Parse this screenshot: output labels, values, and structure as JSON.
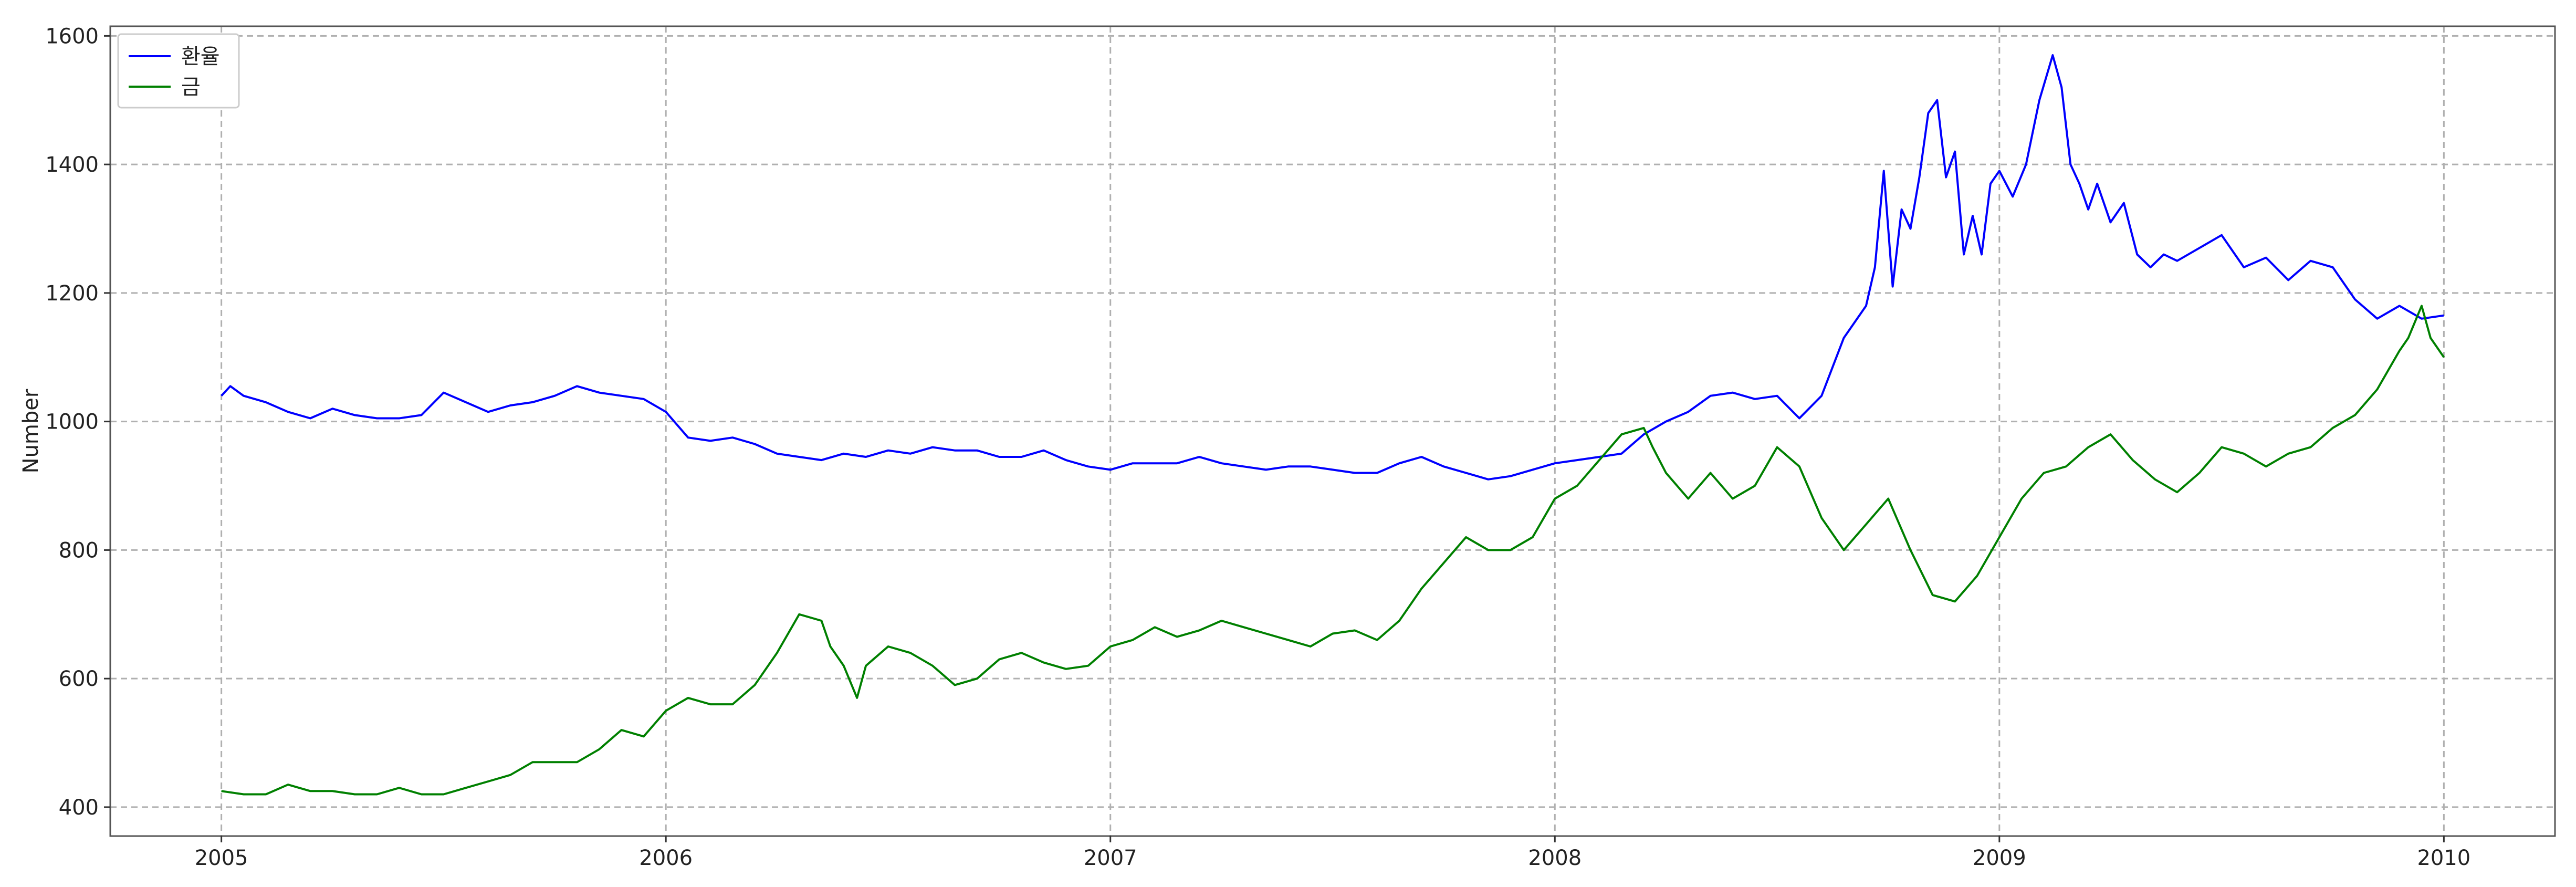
{
  "chart_data": {
    "type": "line",
    "title": "",
    "xlabel": "",
    "ylabel": "Number",
    "xlim": [
      2004.75,
      2010.25
    ],
    "ylim": [
      355,
      1615
    ],
    "x_ticks": [
      {
        "value": 2005,
        "label": "2005"
      },
      {
        "value": 2006,
        "label": "2006"
      },
      {
        "value": 2007,
        "label": "2007"
      },
      {
        "value": 2008,
        "label": "2008"
      },
      {
        "value": 2009,
        "label": "2009"
      },
      {
        "value": 2010,
        "label": "2010"
      }
    ],
    "y_ticks": [
      {
        "value": 400,
        "label": "400"
      },
      {
        "value": 600,
        "label": "600"
      },
      {
        "value": 800,
        "label": "800"
      },
      {
        "value": 1000,
        "label": "1000"
      },
      {
        "value": 1200,
        "label": "1200"
      },
      {
        "value": 1400,
        "label": "1400"
      },
      {
        "value": 1600,
        "label": "1600"
      }
    ],
    "grid": true,
    "legend_position": "top-left",
    "series": [
      {
        "name": "환율",
        "color": "#0000ff",
        "x": [
          2005.0,
          2005.02,
          2005.05,
          2005.1,
          2005.15,
          2005.2,
          2005.25,
          2005.3,
          2005.35,
          2005.4,
          2005.45,
          2005.5,
          2005.55,
          2005.6,
          2005.65,
          2005.7,
          2005.75,
          2005.8,
          2005.85,
          2005.9,
          2005.95,
          2006.0,
          2006.05,
          2006.1,
          2006.15,
          2006.2,
          2006.25,
          2006.3,
          2006.35,
          2006.4,
          2006.45,
          2006.5,
          2006.55,
          2006.6,
          2006.65,
          2006.7,
          2006.75,
          2006.8,
          2006.85,
          2006.9,
          2006.95,
          2007.0,
          2007.05,
          2007.1,
          2007.15,
          2007.2,
          2007.25,
          2007.3,
          2007.35,
          2007.4,
          2007.45,
          2007.5,
          2007.55,
          2007.6,
          2007.65,
          2007.7,
          2007.75,
          2007.8,
          2007.85,
          2007.9,
          2007.95,
          2008.0,
          2008.05,
          2008.1,
          2008.15,
          2008.2,
          2008.25,
          2008.3,
          2008.35,
          2008.4,
          2008.45,
          2008.5,
          2008.55,
          2008.6,
          2008.65,
          2008.7,
          2008.72,
          2008.74,
          2008.76,
          2008.78,
          2008.8,
          2008.82,
          2008.84,
          2008.86,
          2008.88,
          2008.9,
          2008.92,
          2008.94,
          2008.96,
          2008.98,
          2009.0,
          2009.03,
          2009.06,
          2009.09,
          2009.12,
          2009.14,
          2009.16,
          2009.18,
          2009.2,
          2009.22,
          2009.25,
          2009.28,
          2009.31,
          2009.34,
          2009.37,
          2009.4,
          2009.45,
          2009.5,
          2009.55,
          2009.6,
          2009.65,
          2009.7,
          2009.75,
          2009.8,
          2009.85,
          2009.9,
          2009.95,
          2010.0
        ],
        "values": [
          1040,
          1055,
          1040,
          1030,
          1015,
          1005,
          1020,
          1010,
          1005,
          1005,
          1010,
          1045,
          1030,
          1015,
          1025,
          1030,
          1040,
          1055,
          1045,
          1040,
          1035,
          1015,
          975,
          970,
          975,
          965,
          950,
          945,
          940,
          950,
          945,
          955,
          950,
          960,
          955,
          955,
          945,
          945,
          955,
          940,
          930,
          925,
          935,
          935,
          935,
          945,
          935,
          930,
          925,
          930,
          930,
          925,
          920,
          920,
          935,
          945,
          930,
          920,
          910,
          915,
          925,
          935,
          940,
          945,
          950,
          980,
          1000,
          1015,
          1040,
          1045,
          1035,
          1040,
          1005,
          1040,
          1130,
          1180,
          1240,
          1390,
          1210,
          1330,
          1300,
          1380,
          1480,
          1500,
          1380,
          1420,
          1260,
          1320,
          1260,
          1370,
          1390,
          1350,
          1400,
          1500,
          1570,
          1520,
          1400,
          1370,
          1330,
          1370,
          1310,
          1340,
          1260,
          1240,
          1260,
          1250,
          1270,
          1290,
          1240,
          1255,
          1220,
          1250,
          1240,
          1190,
          1160,
          1180,
          1160,
          1165
        ]
      },
      {
        "name": "금",
        "color": "#008000",
        "x": [
          2005.0,
          2005.05,
          2005.1,
          2005.15,
          2005.2,
          2005.25,
          2005.3,
          2005.35,
          2005.4,
          2005.45,
          2005.5,
          2005.55,
          2005.6,
          2005.65,
          2005.7,
          2005.75,
          2005.8,
          2005.85,
          2005.9,
          2005.95,
          2006.0,
          2006.05,
          2006.1,
          2006.15,
          2006.2,
          2006.25,
          2006.3,
          2006.35,
          2006.37,
          2006.4,
          2006.43,
          2006.45,
          2006.5,
          2006.55,
          2006.6,
          2006.65,
          2006.7,
          2006.75,
          2006.8,
          2006.85,
          2006.9,
          2006.95,
          2007.0,
          2007.05,
          2007.1,
          2007.15,
          2007.2,
          2007.25,
          2007.3,
          2007.35,
          2007.4,
          2007.45,
          2007.5,
          2007.55,
          2007.6,
          2007.65,
          2007.7,
          2007.75,
          2007.8,
          2007.85,
          2007.9,
          2007.95,
          2008.0,
          2008.05,
          2008.1,
          2008.15,
          2008.2,
          2008.22,
          2008.25,
          2008.3,
          2008.35,
          2008.4,
          2008.45,
          2008.5,
          2008.55,
          2008.6,
          2008.65,
          2008.7,
          2008.75,
          2008.8,
          2008.85,
          2008.9,
          2008.95,
          2009.0,
          2009.05,
          2009.1,
          2009.15,
          2009.2,
          2009.25,
          2009.3,
          2009.35,
          2009.4,
          2009.45,
          2009.5,
          2009.55,
          2009.6,
          2009.65,
          2009.7,
          2009.75,
          2009.8,
          2009.85,
          2009.9,
          2009.92,
          2009.95,
          2009.97,
          2010.0
        ],
        "values": [
          425,
          420,
          420,
          435,
          425,
          425,
          420,
          420,
          430,
          420,
          420,
          430,
          440,
          450,
          470,
          470,
          470,
          490,
          520,
          510,
          550,
          570,
          560,
          560,
          590,
          640,
          700,
          690,
          650,
          620,
          570,
          620,
          650,
          640,
          620,
          590,
          600,
          630,
          640,
          625,
          615,
          620,
          650,
          660,
          680,
          665,
          675,
          690,
          680,
          670,
          660,
          650,
          670,
          675,
          660,
          690,
          740,
          780,
          820,
          800,
          800,
          820,
          880,
          900,
          940,
          980,
          990,
          960,
          920,
          880,
          920,
          880,
          900,
          960,
          930,
          850,
          800,
          840,
          880,
          800,
          730,
          720,
          760,
          820,
          880,
          920,
          930,
          960,
          980,
          940,
          910,
          890,
          920,
          960,
          950,
          930,
          950,
          960,
          990,
          1010,
          1050,
          1110,
          1130,
          1180,
          1130,
          1100
        ]
      }
    ]
  }
}
